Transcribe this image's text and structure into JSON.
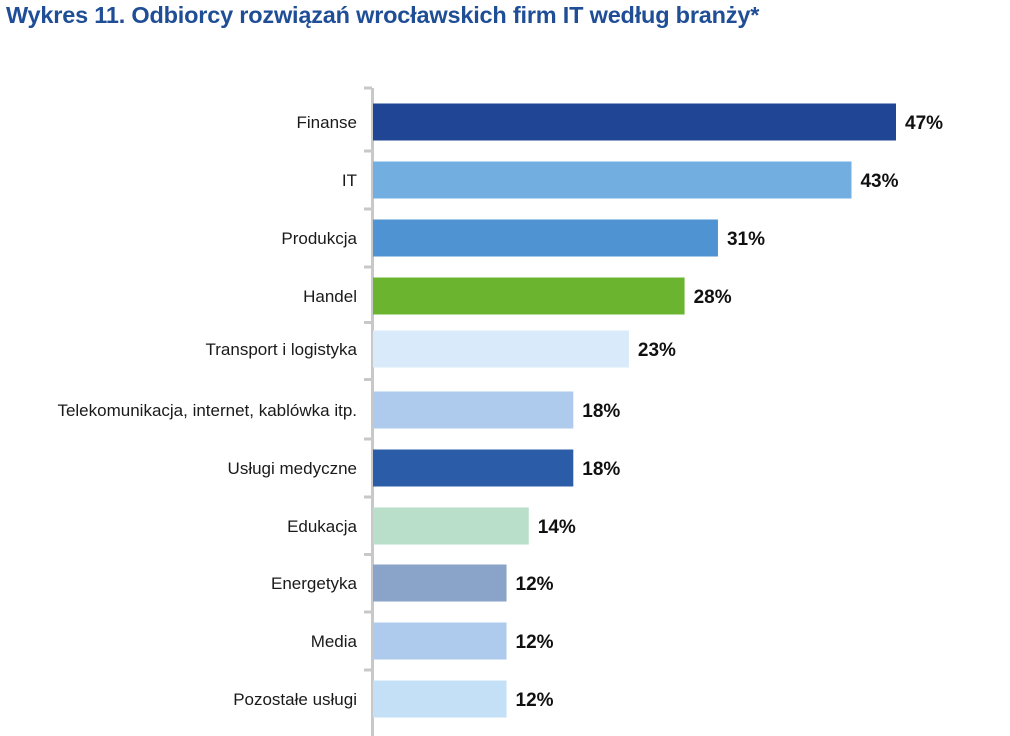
{
  "title": "Wykres 11. Odbiorcy rozwiązań wrocławskich firm IT według branży*",
  "chart_data": {
    "type": "bar",
    "orientation": "horizontal",
    "title": "Wykres 11. Odbiorcy rozwiązań wrocławskich firm IT według branży*",
    "xlabel": "",
    "ylabel": "",
    "unit": "%",
    "xlim": [
      0,
      47
    ],
    "grid": false,
    "legend": "none",
    "categories": [
      "Finanse",
      "IT",
      "Produkcja",
      "Handel",
      "Transport i logistyka",
      "Telekomunikacja, internet, kablówka itp.",
      "Usługi medyczne",
      "Edukacja",
      "Energetyka",
      "Media",
      "Pozostałe usługi"
    ],
    "values": [
      47,
      43,
      31,
      28,
      23,
      18,
      18,
      14,
      12,
      12,
      12
    ],
    "labels": [
      "47%",
      "43%",
      "31%",
      "28%",
      "23%",
      "18%",
      "18%",
      "14%",
      "12%",
      "12%",
      "12%"
    ],
    "colors": [
      "#1f4594",
      "#72aee0",
      "#4f93d2",
      "#6ab42f",
      "#d9ebfa",
      "#aecbed",
      "#2a5ca8",
      "#b9dfcb",
      "#8aa3c8",
      "#aecbed",
      "#c3e0f7"
    ],
    "axis_color": "#c8c8c8"
  }
}
